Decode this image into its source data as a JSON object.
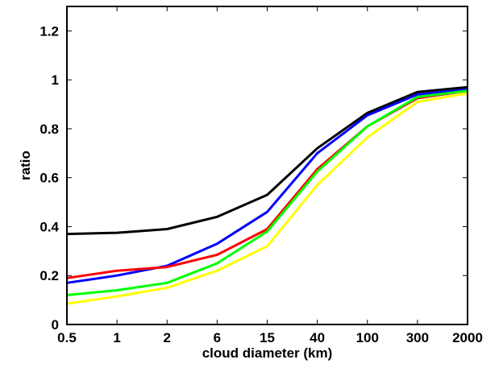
{
  "chart_data": {
    "type": "line",
    "title": "",
    "xlabel": "cloud diameter (km)",
    "ylabel": "ratio",
    "categories": [
      "0.5",
      "1",
      "2",
      "6",
      "15",
      "40",
      "100",
      "300",
      "2000"
    ],
    "ylim": [
      0,
      1.3
    ],
    "yticks": [
      "0",
      "0.2",
      "0.4",
      "0.6",
      "0.8",
      "1",
      "1.2"
    ],
    "grid": false,
    "legend": "none",
    "series": [
      {
        "color": "#000000",
        "values": [
          0.37,
          0.375,
          0.39,
          0.44,
          0.53,
          0.72,
          0.865,
          0.95,
          0.97
        ]
      },
      {
        "color": "#0000ff",
        "values": [
          0.17,
          0.2,
          0.24,
          0.33,
          0.46,
          0.7,
          0.855,
          0.94,
          0.96
        ]
      },
      {
        "color": "#ff0000",
        "values": [
          0.19,
          0.22,
          0.235,
          0.285,
          0.39,
          0.635,
          0.81,
          0.925,
          0.955
        ]
      },
      {
        "color": "#00ff00",
        "values": [
          0.12,
          0.14,
          0.17,
          0.25,
          0.38,
          0.625,
          0.81,
          0.93,
          0.955
        ]
      },
      {
        "color": "#ffff00",
        "values": [
          0.085,
          0.115,
          0.15,
          0.22,
          0.32,
          0.57,
          0.765,
          0.91,
          0.945
        ]
      }
    ]
  }
}
